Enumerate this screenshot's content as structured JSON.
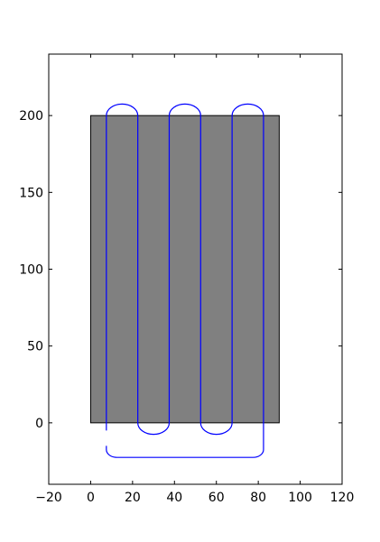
{
  "chart_data": {
    "type": "line",
    "title": "",
    "xlabel": "",
    "ylabel": "",
    "xlim": [
      -20,
      120
    ],
    "ylim": [
      -40,
      240
    ],
    "xticks": [
      -20,
      0,
      20,
      40,
      60,
      80,
      100,
      120
    ],
    "yticks": [
      0,
      50,
      100,
      150,
      200
    ],
    "xtick_labels": [
      "−20",
      "0",
      "20",
      "40",
      "60",
      "80",
      "100",
      "120"
    ],
    "ytick_labels": [
      "0",
      "50",
      "100",
      "150",
      "200"
    ],
    "grid": false,
    "legend": "none",
    "rectangle": {
      "x": [
        0,
        90
      ],
      "y": [
        0,
        200
      ],
      "fill": "#808080",
      "edge": "#000000"
    },
    "path": {
      "color": "#0000ff",
      "passes_x": [
        7.5,
        22.5,
        37.5,
        52.5,
        67.5,
        82.5
      ],
      "start_y": -5,
      "top_y": 200,
      "bottom_y": 0,
      "turn_radius": 7.5,
      "return_y": -22.5,
      "return_end_y": -15
    }
  }
}
